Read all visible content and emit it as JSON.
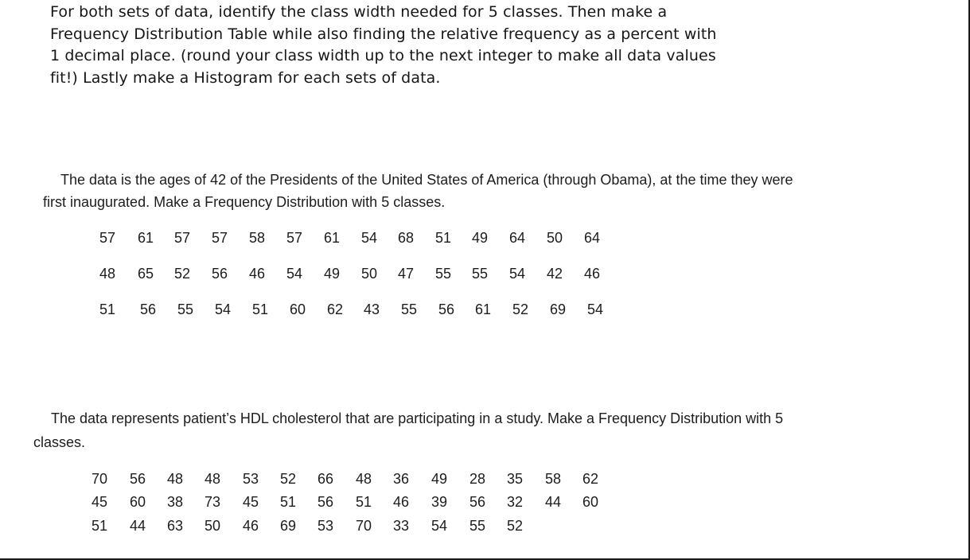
{
  "instructions": {
    "lines": [
      "For both sets of data, identify the class width needed for 5 classes. Then make a",
      "Frequency Distribution Table while also finding the relative frequency as a percent with",
      "1 decimal place. (round your class width up to the next integer to make all data values",
      "fit!) Lastly make a Histogram for each sets of data."
    ]
  },
  "presidents": {
    "line1": "The data is the ages of 42 of the Presidents of the United States of America (through Obama), at the time they were",
    "line2": "first inaugurated. Make a Frequency Distribution with 5 classes.",
    "rows": [
      [
        "57",
        "61",
        "57",
        "57",
        "58",
        "57",
        "61",
        "54",
        "68",
        "51",
        "49",
        "64",
        "50",
        "64"
      ],
      [
        "48",
        "65",
        "52",
        "56",
        "46",
        "54",
        "49",
        "50",
        "47",
        "55",
        "55",
        "54",
        "42",
        "46"
      ],
      [
        "51",
        "56",
        "55",
        "54",
        "51",
        "60",
        "62",
        "43",
        "55",
        "56",
        "61",
        "52",
        "69",
        "54"
      ]
    ]
  },
  "cholesterol": {
    "line1": "The data represents patient’s HDL cholesterol that are participating in a study. Make a Frequency Distribution with 5",
    "line2": "classes.",
    "rows": [
      [
        "70",
        "56",
        "48",
        "48",
        "53",
        "52",
        "66",
        "48",
        "36",
        "49",
        "28",
        "35",
        "58",
        "62"
      ],
      [
        "45",
        "60",
        "38",
        "73",
        "45",
        "51",
        "56",
        "51",
        "46",
        "39",
        "56",
        "32",
        "44",
        "60"
      ],
      [
        "51",
        "44",
        "63",
        "50",
        "46",
        "69",
        "53",
        "70",
        "33",
        "54",
        "55",
        "52"
      ]
    ]
  }
}
